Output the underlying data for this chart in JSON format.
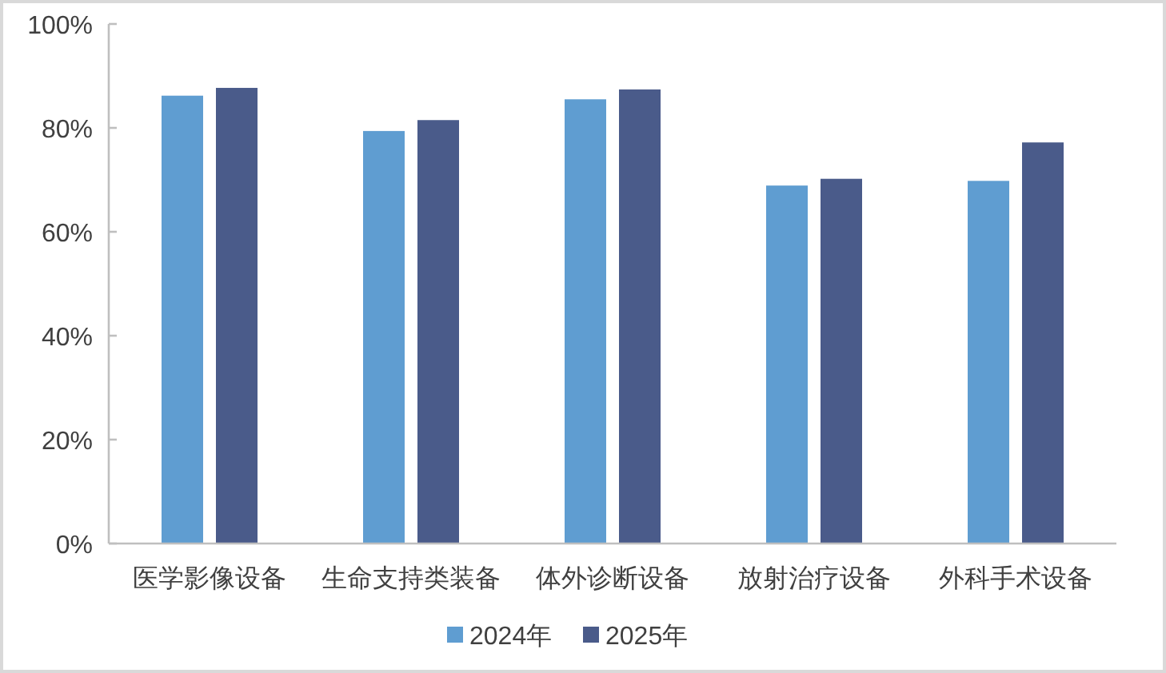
{
  "chart_data": {
    "type": "bar",
    "categories": [
      "医学影像设备",
      "生命支持类装备",
      "体外诊断设备",
      "放射治疗设备",
      "外科手术设备"
    ],
    "series": [
      {
        "name": "2024年",
        "color": "#5f9dd1",
        "values": [
          86.2,
          79.4,
          85.5,
          68.9,
          69.8
        ]
      },
      {
        "name": "2025年",
        "color": "#4a5b8a",
        "values": [
          87.7,
          81.5,
          87.4,
          70.2,
          77.2
        ]
      }
    ],
    "ylim": [
      0,
      100
    ],
    "yticks": [
      {
        "value": 0,
        "label": "0%"
      },
      {
        "value": 20,
        "label": "20%"
      },
      {
        "value": 40,
        "label": "40%"
      },
      {
        "value": 60,
        "label": "60%"
      },
      {
        "value": 80,
        "label": "80%"
      },
      {
        "value": 100,
        "label": "100%"
      }
    ],
    "legend": "bottom"
  }
}
